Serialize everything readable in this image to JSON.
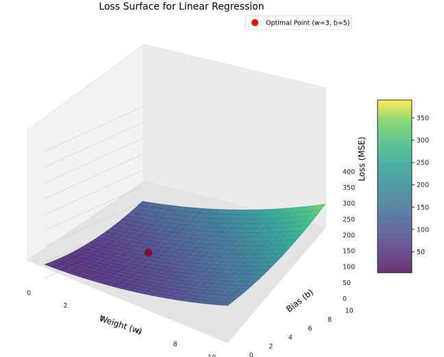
{
  "chart_data": {
    "type": "surface3d",
    "title": "Loss Surface for Linear Regression",
    "xlabel": "Weight (w)",
    "ylabel": "Bias (b)",
    "zlabel": "Loss (MSE)",
    "x_range": [
      0,
      10
    ],
    "y_range": [
      0,
      10
    ],
    "z_range": [
      0,
      400
    ],
    "x_ticks": [
      "0",
      "2",
      "4",
      "6",
      "8",
      "10"
    ],
    "y_ticks": [
      "0",
      "2",
      "4",
      "6",
      "8",
      "10"
    ],
    "z_ticks": [
      "0",
      "50",
      "100",
      "150",
      "200",
      "250",
      "300",
      "350",
      "400"
    ],
    "surface_corners": [
      {
        "w": 0,
        "b": 0,
        "loss": 40
      },
      {
        "w": 0,
        "b": 10,
        "loss": 135
      },
      {
        "w": 10,
        "b": 0,
        "loss": 100
      },
      {
        "w": 10,
        "b": 10,
        "loss": 390
      }
    ],
    "colormap": "viridis",
    "colorbar": {
      "ticks": [
        "50",
        "100",
        "150",
        "200",
        "250",
        "300",
        "350"
      ],
      "range": [
        3,
        390
      ]
    },
    "optimal_point": {
      "w": 3,
      "b": 5,
      "loss": 0,
      "color": "#ff0000"
    },
    "legend": {
      "label": "Optimal Point (w=3, b=5)",
      "placement": "top-right"
    },
    "grid": true
  }
}
